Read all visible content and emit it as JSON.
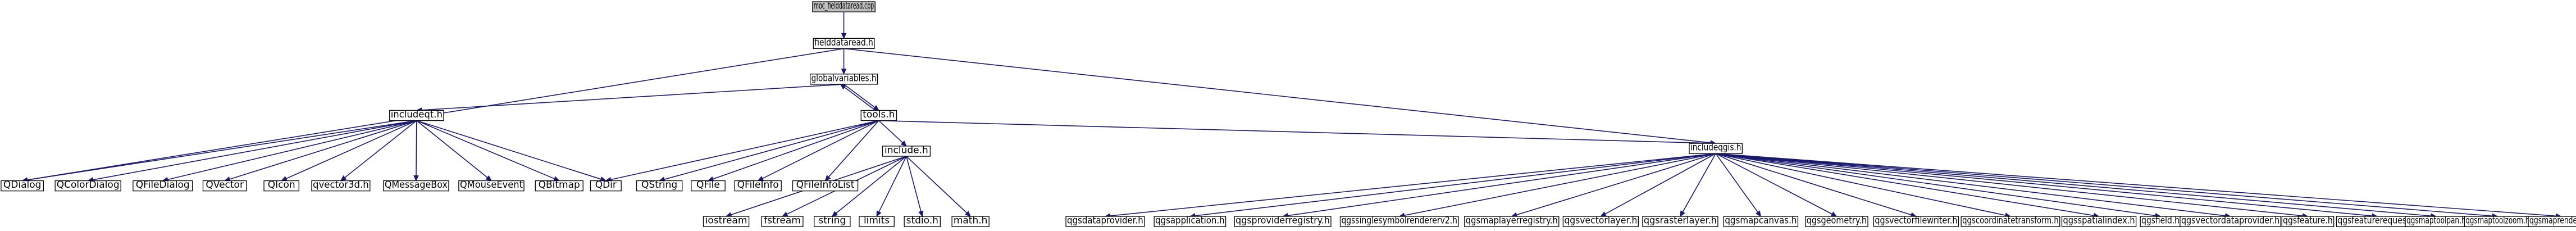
{
  "diagram": {
    "type": "include-dependency-graph",
    "edge_color": "#191970",
    "root_fill": "#bfbfbf",
    "node_fill": "#ffffff",
    "nodes": [
      {
        "id": "moc",
        "label": "moc_fielddataread.cpp",
        "root": true
      },
      {
        "id": "fdr",
        "label": "fielddataread.h"
      },
      {
        "id": "gv",
        "label": "globalvariables.h"
      },
      {
        "id": "iqt",
        "label": "includeqt.h"
      },
      {
        "id": "tools",
        "label": "tools.h"
      },
      {
        "id": "qgis",
        "label": "includeqgis.h"
      },
      {
        "id": "QDialog",
        "label": "QDialog"
      },
      {
        "id": "QColorDialog",
        "label": "QColorDialog"
      },
      {
        "id": "QFileDialog",
        "label": "QFileDialog"
      },
      {
        "id": "QVector",
        "label": "QVector"
      },
      {
        "id": "QIcon",
        "label": "QIcon"
      },
      {
        "id": "qvector3d",
        "label": "qvector3d.h"
      },
      {
        "id": "QMessageBox",
        "label": "QMessageBox"
      },
      {
        "id": "QMouseEvent",
        "label": "QMouseEvent"
      },
      {
        "id": "QBitmap",
        "label": "QBitmap"
      },
      {
        "id": "QDir",
        "label": "QDir"
      },
      {
        "id": "QString",
        "label": "QString"
      },
      {
        "id": "QFile",
        "label": "QFile"
      },
      {
        "id": "QFileInfo",
        "label": "QFileInfo"
      },
      {
        "id": "QFileInfoList",
        "label": "QFileInfoList"
      },
      {
        "id": "include",
        "label": "include.h"
      },
      {
        "id": "iostream",
        "label": "iostream"
      },
      {
        "id": "fstream",
        "label": "fstream"
      },
      {
        "id": "string",
        "label": "string"
      },
      {
        "id": "limits",
        "label": "limits"
      },
      {
        "id": "stdio",
        "label": "stdio.h"
      },
      {
        "id": "math",
        "label": "math.h"
      },
      {
        "id": "q1",
        "label": "qgsdataprovider.h"
      },
      {
        "id": "q2",
        "label": "qgsapplication.h"
      },
      {
        "id": "q3",
        "label": "qgsproviderregistry.h"
      },
      {
        "id": "q4",
        "label": "qgssinglesymbolrendererv2.h"
      },
      {
        "id": "q5",
        "label": "qgsmaplayerregistry.h"
      },
      {
        "id": "q6",
        "label": "qgsvectorlayer.h"
      },
      {
        "id": "q7",
        "label": "qgsrasterlayer.h"
      },
      {
        "id": "q8",
        "label": "qgsmapcanvas.h"
      },
      {
        "id": "q9",
        "label": "qgsgeometry.h"
      },
      {
        "id": "q10",
        "label": "qgsvectorfilewriter.h"
      },
      {
        "id": "q11",
        "label": "qgscoordinatetransform.h"
      },
      {
        "id": "q12",
        "label": "qgsspatialindex.h"
      },
      {
        "id": "q13",
        "label": "qgsfield.h"
      },
      {
        "id": "q14",
        "label": "qgsvectordataprovider.h"
      },
      {
        "id": "q15",
        "label": "qgsfeature.h"
      },
      {
        "id": "q16",
        "label": "qgsfeaturerequest.h"
      },
      {
        "id": "q17",
        "label": "qgsmaptoolpan.h"
      },
      {
        "id": "q18",
        "label": "qgsmaptoolzoom.h"
      },
      {
        "id": "q19",
        "label": "qgsmaprenderer.h"
      }
    ],
    "edges": [
      [
        "moc",
        "fdr"
      ],
      [
        "fdr",
        "gv"
      ],
      [
        "fdr",
        "QDialog"
      ],
      [
        "fdr",
        "qgis"
      ],
      [
        "gv",
        "iqt"
      ],
      [
        "gv",
        "tools"
      ],
      [
        "tools",
        "gv"
      ],
      [
        "iqt",
        "QDialog"
      ],
      [
        "iqt",
        "QColorDialog"
      ],
      [
        "iqt",
        "QFileDialog"
      ],
      [
        "iqt",
        "QVector"
      ],
      [
        "iqt",
        "QIcon"
      ],
      [
        "iqt",
        "qvector3d"
      ],
      [
        "iqt",
        "QMessageBox"
      ],
      [
        "iqt",
        "QMouseEvent"
      ],
      [
        "iqt",
        "QBitmap"
      ],
      [
        "iqt",
        "QDir"
      ],
      [
        "tools",
        "QDir"
      ],
      [
        "tools",
        "QString"
      ],
      [
        "tools",
        "QFile"
      ],
      [
        "tools",
        "QFileInfo"
      ],
      [
        "tools",
        "QFileInfoList"
      ],
      [
        "tools",
        "include"
      ],
      [
        "tools",
        "qgis"
      ],
      [
        "include",
        "iostream"
      ],
      [
        "include",
        "fstream"
      ],
      [
        "include",
        "string"
      ],
      [
        "include",
        "limits"
      ],
      [
        "include",
        "stdio"
      ],
      [
        "include",
        "math"
      ],
      [
        "qgis",
        "q1"
      ],
      [
        "qgis",
        "q2"
      ],
      [
        "qgis",
        "q3"
      ],
      [
        "qgis",
        "q4"
      ],
      [
        "qgis",
        "q5"
      ],
      [
        "qgis",
        "q6"
      ],
      [
        "qgis",
        "q7"
      ],
      [
        "qgis",
        "q8"
      ],
      [
        "qgis",
        "q9"
      ],
      [
        "qgis",
        "q10"
      ],
      [
        "qgis",
        "q11"
      ],
      [
        "qgis",
        "q12"
      ],
      [
        "qgis",
        "q13"
      ],
      [
        "qgis",
        "q14"
      ],
      [
        "qgis",
        "q15"
      ],
      [
        "qgis",
        "q16"
      ],
      [
        "qgis",
        "q17"
      ],
      [
        "qgis",
        "q18"
      ],
      [
        "qgis",
        "q19"
      ]
    ]
  }
}
